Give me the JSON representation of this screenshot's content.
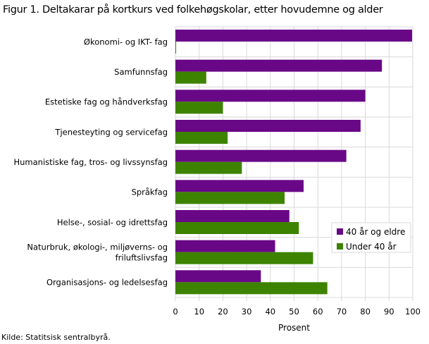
{
  "title": "Figur 1. Deltakarar på kortkurs ved folkehøgskolar, etter hovudemne og alder",
  "source": "Kilde: Statitsisk sentralbyrå.",
  "colors": {
    "older": "#690887",
    "younger": "#3d8300",
    "grid": "#d9d9d9"
  },
  "chart_data": {
    "type": "bar",
    "orientation": "horizontal",
    "title": "Figur 1. Deltakarar på kortkurs ved folkehøgskolar, etter hovudemne og alder",
    "xlabel": "Prosent",
    "ylabel": "",
    "xlim": [
      0,
      100
    ],
    "xticks": [
      0,
      10,
      20,
      30,
      40,
      50,
      60,
      70,
      80,
      90,
      100
    ],
    "grid": true,
    "legend_position": "bottom-right",
    "categories": [
      [
        "Økonomi- og IKT- fag"
      ],
      [
        "Samfunnsfag"
      ],
      [
        "Estetiske fag og håndverksfag"
      ],
      [
        "Tjenesteyting og servicefag"
      ],
      [
        "Humanistiske fag, tros- og livssynsfag"
      ],
      [
        "Språkfag"
      ],
      [
        "Helse-, sosial- og idrettsfag"
      ],
      [
        "Naturbruk, økologi-, miljøverns- og",
        "friluftslivsfag"
      ],
      [
        "Organisasjons- og ledelsesfag"
      ]
    ],
    "series": [
      {
        "name": "40 år og eldre",
        "values": [
          99.7,
          87,
          80,
          78,
          72,
          54,
          48,
          42,
          36
        ]
      },
      {
        "name": "Under 40 år",
        "values": [
          0.3,
          13,
          20,
          22,
          28,
          46,
          52,
          58,
          64
        ]
      }
    ]
  }
}
